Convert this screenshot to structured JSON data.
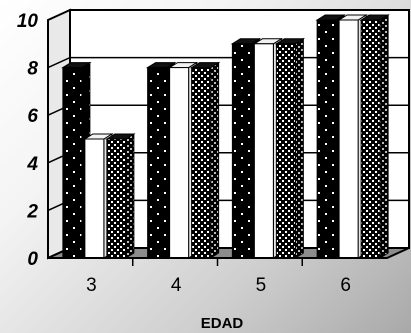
{
  "chart_data": {
    "type": "bar",
    "title": "",
    "xlabel": "EDAD",
    "ylabel": "",
    "categories": [
      "3",
      "4",
      "5",
      "6"
    ],
    "series": [
      {
        "values": [
          8,
          8,
          9,
          10
        ]
      },
      {
        "values": [
          5,
          8,
          9,
          10
        ]
      },
      {
        "values": [
          5,
          8,
          9,
          10
        ]
      }
    ],
    "ylim": [
      0,
      10
    ],
    "yticks": [
      "0",
      "2",
      "4",
      "6",
      "8",
      "10"
    ],
    "grid": true,
    "legend": "none",
    "style": "3d",
    "colors": {
      "series_patterns": [
        "black-with-white-dots",
        "white",
        "dotted-checker"
      ],
      "floor": "#8c8c8c",
      "axis": "#000000"
    }
  }
}
